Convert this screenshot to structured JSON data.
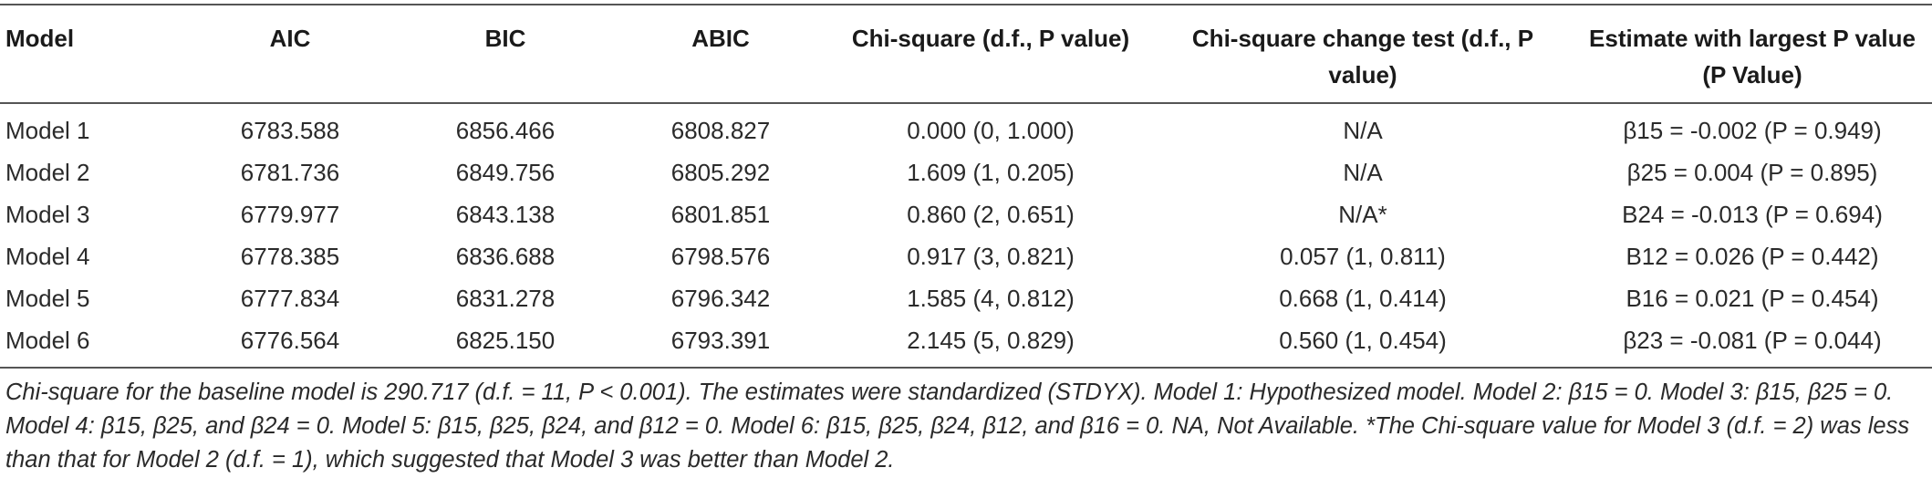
{
  "table": {
    "headers": [
      "Model",
      "AIC",
      "BIC",
      "ABIC",
      "Chi-square (d.f., P value)",
      "Chi-square change test (d.f., P value)",
      "Estimate with largest P value (P Value)"
    ],
    "rows": [
      [
        "Model 1",
        "6783.588",
        "6856.466",
        "6808.827",
        "0.000 (0, 1.000)",
        "N/A",
        "β15 = -0.002 (P = 0.949)"
      ],
      [
        "Model 2",
        "6781.736",
        "6849.756",
        "6805.292",
        "1.609 (1, 0.205)",
        "N/A",
        "β25 = 0.004 (P = 0.895)"
      ],
      [
        "Model 3",
        "6779.977",
        "6843.138",
        "6801.851",
        "0.860 (2, 0.651)",
        "N/A*",
        "B24 = -0.013 (P = 0.694)"
      ],
      [
        "Model 4",
        "6778.385",
        "6836.688",
        "6798.576",
        "0.917 (3, 0.821)",
        "0.057 (1, 0.811)",
        "B12 = 0.026 (P = 0.442)"
      ],
      [
        "Model 5",
        "6777.834",
        "6831.278",
        "6796.342",
        "1.585 (4, 0.812)",
        "0.668 (1, 0.414)",
        "B16 = 0.021 (P = 0.454)"
      ],
      [
        "Model 6",
        "6776.564",
        "6825.150",
        "6793.391",
        "2.145 (5, 0.829)",
        "0.560 (1, 0.454)",
        "β23 = -0.081 (P = 0.044)"
      ]
    ]
  },
  "footnote": "Chi-square for the baseline model is 290.717 (d.f. = 11, P < 0.001). The estimates were standardized (STDYX). Model 1: Hypothesized model. Model 2: β15 = 0. Model 3: β15, β25 = 0. Model 4: β15, β25, and β24 = 0. Model 5: β15, β25, β24, and β12 = 0. Model 6: β15, β25, β24, β12, and β16 = 0. NA, Not Available. *The Chi-square value for Model 3 (d.f. = 2) was less than that for Model 2 (d.f. = 1), which suggested that Model 3 was better than Model 2."
}
